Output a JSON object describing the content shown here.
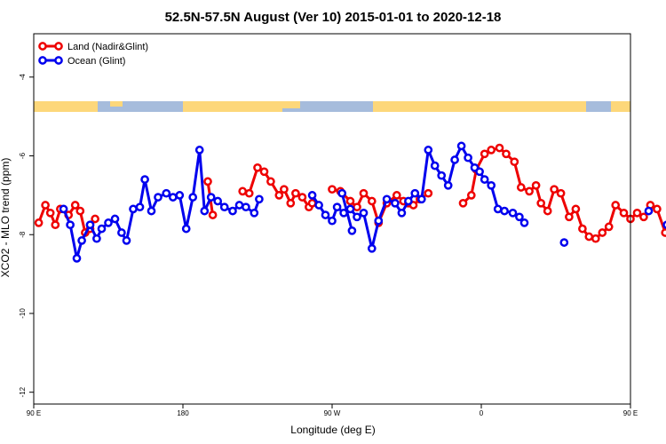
{
  "chart_data": {
    "type": "line",
    "title": "52.5N-57.5N August (Ver 10)   2015-01-01 to 2020-12-18",
    "xlabel": "Longitude (deg E)",
    "ylabel": "XCO2 - MLO trend (ppm)",
    "xlim": [
      90,
      450
    ],
    "ylim": [
      -12.3,
      -2.9
    ],
    "x_ticks": [
      {
        "value": 90,
        "label": "90 E"
      },
      {
        "value": 180,
        "label": "180"
      },
      {
        "value": 270,
        "label": "90 W"
      },
      {
        "value": 360,
        "label": "0"
      },
      {
        "value": 450,
        "label": "90 E"
      },
      {
        "value": 540,
        "label": "180"
      }
    ],
    "y_ticks": [
      {
        "value": -4,
        "label": "-4"
      },
      {
        "value": -6,
        "label": "-6"
      },
      {
        "value": -8,
        "label": "-8"
      },
      {
        "value": -10,
        "label": "-10"
      },
      {
        "value": -12,
        "label": "-12"
      }
    ],
    "grid": false,
    "legend_position": "top-left",
    "land_ocean_strip_y": -4.35,
    "series": [
      {
        "name": "Land (Nadir&Glint)",
        "color": "#ee0000",
        "segments": [
          {
            "x": [
              93,
              97,
              100,
              103,
              106,
              111,
              115,
              118,
              121,
              124,
              127
            ],
            "y": [
              -7.7,
              -7.25,
              -7.45,
              -7.75,
              -7.35,
              -7.5,
              -7.25,
              -7.4,
              -7.95,
              -7.85,
              -7.6
            ]
          },
          {
            "x": [
              195,
              198
            ],
            "y": [
              -6.65,
              -7.5
            ]
          },
          {
            "x": [
              216,
              220,
              225,
              229,
              233,
              238,
              241,
              245,
              248,
              252,
              256,
              258
            ],
            "y": [
              -6.9,
              -6.95,
              -6.3,
              -6.4,
              -6.65,
              -7.0,
              -6.85,
              -7.2,
              -6.95,
              -7.05,
              -7.3,
              -7.2
            ]
          },
          {
            "x": [
              270,
              275,
              281,
              285,
              289,
              294,
              298,
              303,
              309,
              313,
              316,
              319,
              323,
              328
            ],
            "y": [
              -6.85,
              -6.9,
              -7.15,
              -7.3,
              -6.95,
              -7.15,
              -7.7,
              -7.2,
              -7.0,
              -7.15,
              -7.2,
              -7.25,
              -7.1,
              -6.95
            ]
          },
          {
            "x": [
              349,
              354,
              357,
              362,
              366,
              371,
              375,
              380,
              384,
              389,
              393,
              396,
              400,
              404,
              408,
              413,
              417,
              421,
              425,
              429,
              433,
              437,
              441,
              446,
              450,
              454,
              458,
              462,
              466,
              471,
              474,
              478,
              483,
              486,
              491,
              495,
              499,
              502,
              505
            ],
            "y": [
              -7.2,
              -7.0,
              -6.35,
              -5.95,
              -5.85,
              -5.8,
              -5.95,
              -6.15,
              -6.8,
              -6.9,
              -6.75,
              -7.2,
              -7.4,
              -6.85,
              -6.95,
              -7.55,
              -7.35,
              -7.85,
              -8.05,
              -8.1,
              -7.95,
              -7.8,
              -7.25,
              -7.45,
              -7.6,
              -7.45,
              -7.55,
              -7.25,
              -7.35,
              -7.95,
              -7.8,
              -7.6,
              -7.95,
              -7.75,
              -7.65,
              -7.9,
              -7.6,
              -7.75,
              -7.7
            ]
          }
        ]
      },
      {
        "name": "Ocean (Glint)",
        "color": "#0000ee",
        "segments": [
          {
            "x": [
              108,
              112,
              116,
              119,
              124,
              128,
              131,
              135,
              139,
              143,
              146,
              150,
              154,
              157,
              161,
              165,
              170,
              174,
              178,
              182,
              186,
              190,
              193,
              197,
              201,
              205,
              210,
              214,
              218,
              223,
              226
            ],
            "y": [
              -7.35,
              -7.75,
              -8.6,
              -8.15,
              -7.75,
              -8.1,
              -7.85,
              -7.7,
              -7.6,
              -7.95,
              -8.15,
              -7.35,
              -7.3,
              -6.6,
              -7.4,
              -7.05,
              -6.95,
              -7.05,
              -7.0,
              -7.85,
              -7.05,
              -5.85,
              -7.4,
              -7.05,
              -7.15,
              -7.3,
              -7.4,
              -7.25,
              -7.3,
              -7.45,
              -7.1
            ]
          },
          {
            "x": [
              258,
              262,
              266,
              270,
              273,
              277,
              281,
              285,
              289,
              294,
              298,
              303,
              308,
              312,
              316,
              320,
              324,
              328,
              332,
              336,
              340,
              344,
              348,
              352,
              356,
              359,
              362,
              366,
              370,
              374,
              379,
              383,
              386
            ],
            "y": [
              -7.0,
              -7.25,
              -7.5,
              -7.65,
              -7.3,
              -7.45,
              -7.35,
              -7.55,
              -7.45,
              -8.35,
              -7.65,
              -7.1,
              -7.2,
              -7.45,
              -7.15,
              -6.95,
              -7.1,
              -5.85,
              -6.25,
              -6.5,
              -6.75,
              -6.1,
              -5.75,
              -6.05,
              -6.3,
              -6.4,
              -6.6,
              -6.75,
              -7.35,
              -7.4,
              -7.45,
              -7.55,
              -7.7
            ]
          },
          {
            "x": [
              276,
              282
            ],
            "y": [
              -6.95,
              -7.9
            ]
          },
          {
            "x": [
              410
            ],
            "y": [
              -8.2
            ]
          },
          {
            "x": [
              472,
              476,
              482,
              488,
              491,
              496,
              500,
              504,
              508
            ],
            "y": [
              -7.75,
              -8.6,
              -8.15,
              -7.75,
              -8.05,
              -7.8,
              -7.7,
              -7.95,
              -8.15
            ]
          },
          {
            "x": [
              461
            ],
            "y": [
              -7.4
            ]
          }
        ]
      }
    ]
  }
}
